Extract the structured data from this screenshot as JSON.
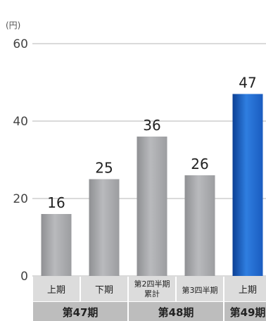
{
  "chart_data": {
    "type": "bar",
    "unit_label": "(円)",
    "yticks": [
      "0",
      "20",
      "40",
      "60"
    ],
    "ylim": [
      0,
      60
    ],
    "grid": true,
    "categories": [
      "上期",
      "下期",
      "第2四半期累計",
      "第3四半期",
      "上期"
    ],
    "category_lines": [
      [
        "上期"
      ],
      [
        "下期"
      ],
      [
        "第2四半期",
        "累計"
      ],
      [
        "第3四半期"
      ],
      [
        "上期"
      ]
    ],
    "values": [
      16,
      25,
      36,
      26,
      47
    ],
    "value_labels": [
      "16",
      "25",
      "36",
      "26",
      "47"
    ],
    "groups": [
      {
        "label": "第47期",
        "span": 2
      },
      {
        "label": "第48期",
        "span": 2
      },
      {
        "label": "第49期",
        "span": 1
      }
    ],
    "highlight_index": 4,
    "colors": {
      "bar": "#a9aaad",
      "highlight": "#1d63c9",
      "grid": "#b5b5b5",
      "cat_bg": "#dcdcdc",
      "grp_bg": "#bdbdbd"
    }
  }
}
